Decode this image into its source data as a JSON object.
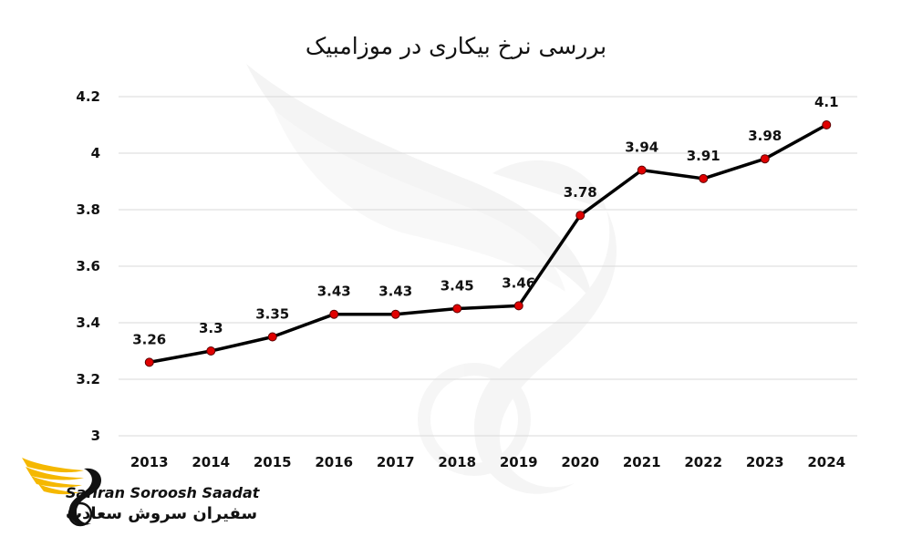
{
  "brand": {
    "name_en": "Safiran Soroosh Saadat",
    "name_fa": "سفیران سروش سعادت"
  },
  "colors": {
    "line": "#000000",
    "marker": "#e00000",
    "grid": "#d9d9d9",
    "watermark": "#e9e9e9",
    "logo_gold": "#f5b800"
  },
  "chart_data": {
    "type": "line",
    "title": "بررسی نرخ بیکاری در موزامبیک",
    "categories": [
      "2013",
      "2014",
      "2015",
      "2016",
      "2017",
      "2018",
      "2019",
      "2020",
      "2021",
      "2022",
      "2023",
      "2024"
    ],
    "values": [
      3.26,
      3.3,
      3.35,
      3.43,
      3.43,
      3.45,
      3.46,
      3.78,
      3.94,
      3.91,
      3.98,
      4.1
    ],
    "data_labels": [
      "3.26",
      "3.3",
      "3.35",
      "3.43",
      "3.43",
      "3.45",
      "3.46",
      "3.78",
      "3.94",
      "3.91",
      "3.98",
      "4.1"
    ],
    "y_ticks": [
      3,
      3.2,
      3.4,
      3.6,
      3.8,
      4,
      4.2
    ],
    "y_tick_labels": [
      "3",
      "3.2",
      "3.4",
      "3.6",
      "3.8",
      "4",
      "4.2"
    ],
    "ylim": [
      3,
      4.2
    ],
    "xlabel": "",
    "ylabel": "",
    "grid": true,
    "legend": "none"
  }
}
